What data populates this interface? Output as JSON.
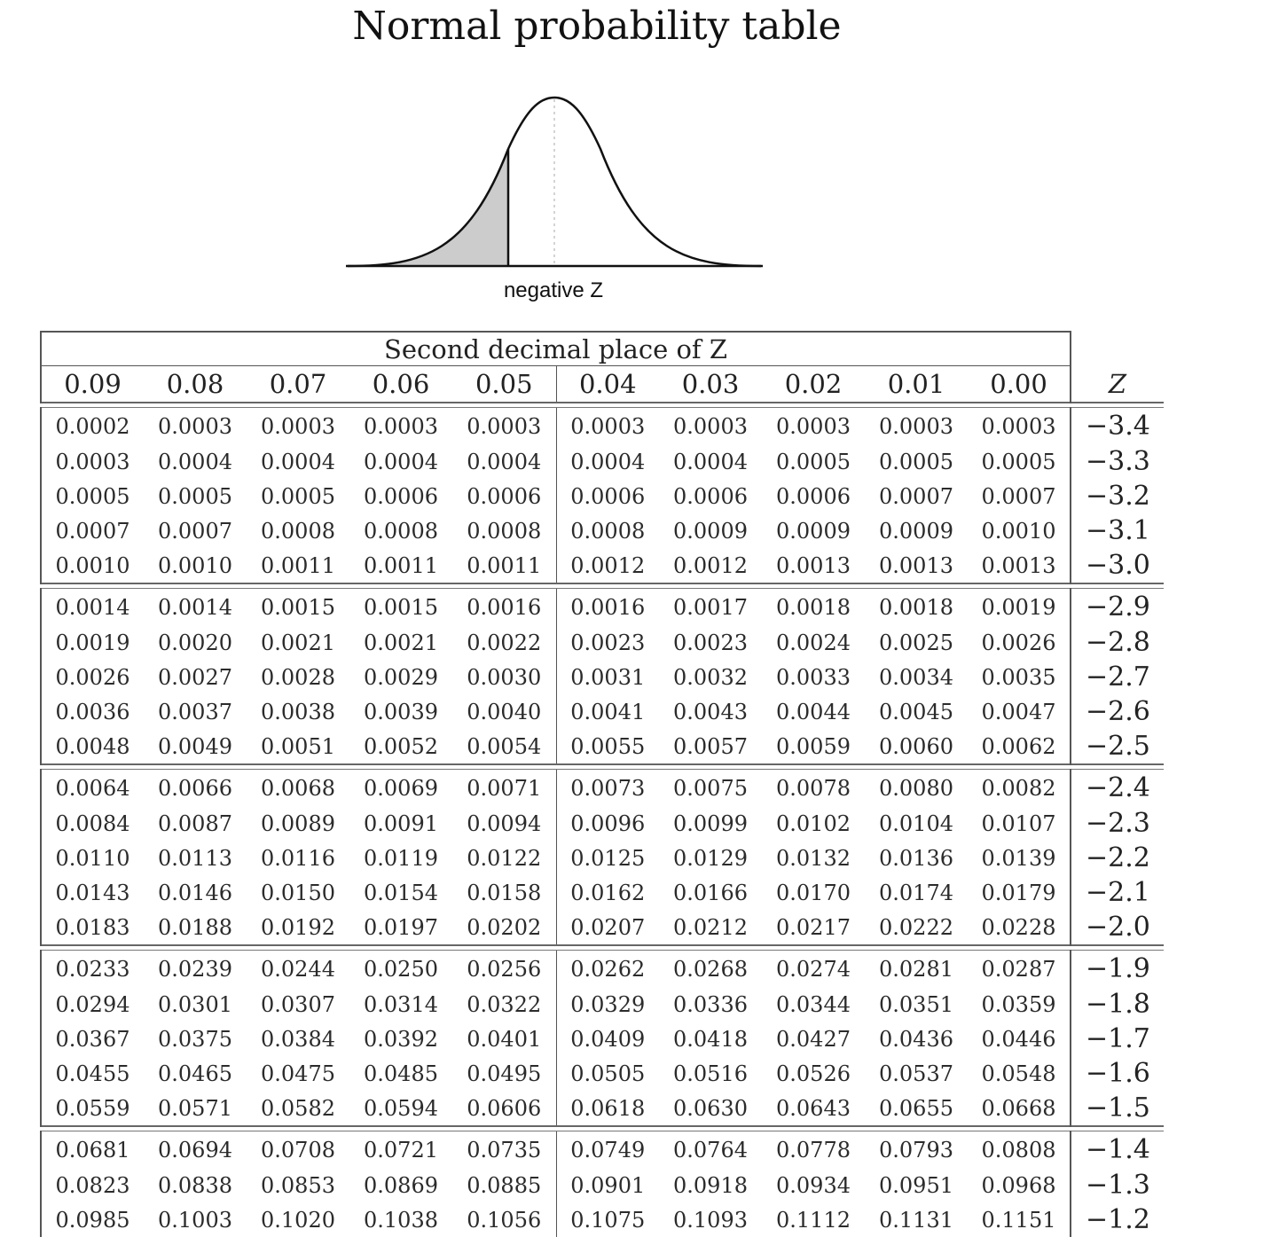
{
  "title": "Normal probability table",
  "curve_caption": "negative Z",
  "table": {
    "header": "Second decimal place of Z",
    "columns": [
      "0.09",
      "0.08",
      "0.07",
      "0.06",
      "0.05",
      "0.04",
      "0.03",
      "0.02",
      "0.01",
      "0.00"
    ],
    "z_label": "Z",
    "groups": [
      [
        {
          "z": "−3.4",
          "values": [
            "0.0002",
            "0.0003",
            "0.0003",
            "0.0003",
            "0.0003",
            "0.0003",
            "0.0003",
            "0.0003",
            "0.0003",
            "0.0003"
          ]
        },
        {
          "z": "−3.3",
          "values": [
            "0.0003",
            "0.0004",
            "0.0004",
            "0.0004",
            "0.0004",
            "0.0004",
            "0.0004",
            "0.0005",
            "0.0005",
            "0.0005"
          ]
        },
        {
          "z": "−3.2",
          "values": [
            "0.0005",
            "0.0005",
            "0.0005",
            "0.0006",
            "0.0006",
            "0.0006",
            "0.0006",
            "0.0006",
            "0.0007",
            "0.0007"
          ]
        },
        {
          "z": "−3.1",
          "values": [
            "0.0007",
            "0.0007",
            "0.0008",
            "0.0008",
            "0.0008",
            "0.0008",
            "0.0009",
            "0.0009",
            "0.0009",
            "0.0010"
          ]
        },
        {
          "z": "−3.0",
          "values": [
            "0.0010",
            "0.0010",
            "0.0011",
            "0.0011",
            "0.0011",
            "0.0012",
            "0.0012",
            "0.0013",
            "0.0013",
            "0.0013"
          ]
        }
      ],
      [
        {
          "z": "−2.9",
          "values": [
            "0.0014",
            "0.0014",
            "0.0015",
            "0.0015",
            "0.0016",
            "0.0016",
            "0.0017",
            "0.0018",
            "0.0018",
            "0.0019"
          ]
        },
        {
          "z": "−2.8",
          "values": [
            "0.0019",
            "0.0020",
            "0.0021",
            "0.0021",
            "0.0022",
            "0.0023",
            "0.0023",
            "0.0024",
            "0.0025",
            "0.0026"
          ]
        },
        {
          "z": "−2.7",
          "values": [
            "0.0026",
            "0.0027",
            "0.0028",
            "0.0029",
            "0.0030",
            "0.0031",
            "0.0032",
            "0.0033",
            "0.0034",
            "0.0035"
          ]
        },
        {
          "z": "−2.6",
          "values": [
            "0.0036",
            "0.0037",
            "0.0038",
            "0.0039",
            "0.0040",
            "0.0041",
            "0.0043",
            "0.0044",
            "0.0045",
            "0.0047"
          ]
        },
        {
          "z": "−2.5",
          "values": [
            "0.0048",
            "0.0049",
            "0.0051",
            "0.0052",
            "0.0054",
            "0.0055",
            "0.0057",
            "0.0059",
            "0.0060",
            "0.0062"
          ]
        }
      ],
      [
        {
          "z": "−2.4",
          "values": [
            "0.0064",
            "0.0066",
            "0.0068",
            "0.0069",
            "0.0071",
            "0.0073",
            "0.0075",
            "0.0078",
            "0.0080",
            "0.0082"
          ]
        },
        {
          "z": "−2.3",
          "values": [
            "0.0084",
            "0.0087",
            "0.0089",
            "0.0091",
            "0.0094",
            "0.0096",
            "0.0099",
            "0.0102",
            "0.0104",
            "0.0107"
          ]
        },
        {
          "z": "−2.2",
          "values": [
            "0.0110",
            "0.0113",
            "0.0116",
            "0.0119",
            "0.0122",
            "0.0125",
            "0.0129",
            "0.0132",
            "0.0136",
            "0.0139"
          ]
        },
        {
          "z": "−2.1",
          "values": [
            "0.0143",
            "0.0146",
            "0.0150",
            "0.0154",
            "0.0158",
            "0.0162",
            "0.0166",
            "0.0170",
            "0.0174",
            "0.0179"
          ]
        },
        {
          "z": "−2.0",
          "values": [
            "0.0183",
            "0.0188",
            "0.0192",
            "0.0197",
            "0.0202",
            "0.0207",
            "0.0212",
            "0.0217",
            "0.0222",
            "0.0228"
          ]
        }
      ],
      [
        {
          "z": "−1.9",
          "values": [
            "0.0233",
            "0.0239",
            "0.0244",
            "0.0250",
            "0.0256",
            "0.0262",
            "0.0268",
            "0.0274",
            "0.0281",
            "0.0287"
          ]
        },
        {
          "z": "−1.8",
          "values": [
            "0.0294",
            "0.0301",
            "0.0307",
            "0.0314",
            "0.0322",
            "0.0329",
            "0.0336",
            "0.0344",
            "0.0351",
            "0.0359"
          ]
        },
        {
          "z": "−1.7",
          "values": [
            "0.0367",
            "0.0375",
            "0.0384",
            "0.0392",
            "0.0401",
            "0.0409",
            "0.0418",
            "0.0427",
            "0.0436",
            "0.0446"
          ]
        },
        {
          "z": "−1.6",
          "values": [
            "0.0455",
            "0.0465",
            "0.0475",
            "0.0485",
            "0.0495",
            "0.0505",
            "0.0516",
            "0.0526",
            "0.0537",
            "0.0548"
          ]
        },
        {
          "z": "−1.5",
          "values": [
            "0.0559",
            "0.0571",
            "0.0582",
            "0.0594",
            "0.0606",
            "0.0618",
            "0.0630",
            "0.0643",
            "0.0655",
            "0.0668"
          ]
        }
      ],
      [
        {
          "z": "−1.4",
          "values": [
            "0.0681",
            "0.0694",
            "0.0708",
            "0.0721",
            "0.0735",
            "0.0749",
            "0.0764",
            "0.0778",
            "0.0793",
            "0.0808"
          ]
        },
        {
          "z": "−1.3",
          "values": [
            "0.0823",
            "0.0838",
            "0.0853",
            "0.0869",
            "0.0885",
            "0.0901",
            "0.0918",
            "0.0934",
            "0.0951",
            "0.0968"
          ]
        },
        {
          "z": "−1.2",
          "values": [
            "0.0985",
            "0.1003",
            "0.1020",
            "0.1038",
            "0.1056",
            "0.1075",
            "0.1093",
            "0.1112",
            "0.1131",
            "0.1151"
          ]
        }
      ]
    ]
  }
}
